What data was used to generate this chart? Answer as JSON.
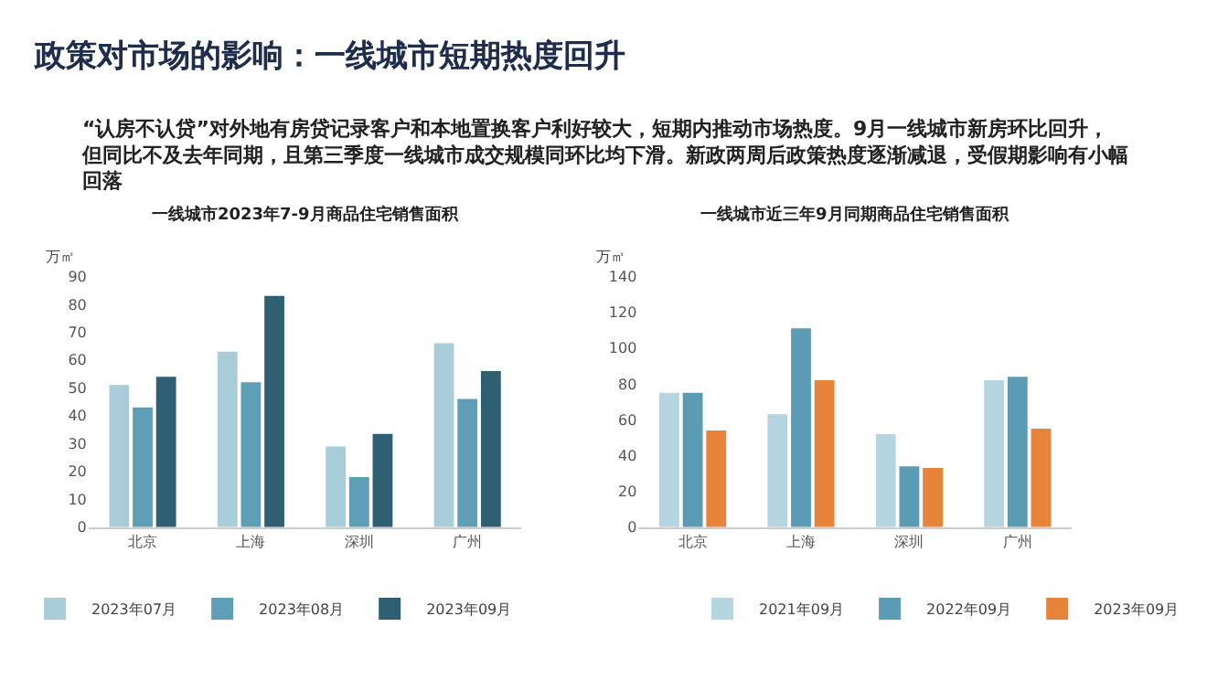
{
  "chart_data": [
    {
      "type": "bar",
      "title": "一线城市2023年7-9月商品住宅销售面积",
      "ylabel": "万㎡",
      "annotations": [
        "政策对市场的影响：一线城市短期热度回升",
        "“认房不认贷”对外地有房贷记录客户和本地置换客户利好较大，短期内推动市场热度。9月一线城市新房环比回升，但同比不及去年同期，且第三季度一线城市成交规模同环比均下滑。新政两周后政策热度逐渐减退，受假期影响有小幅回落"
      ],
      "categories": [
        "北京",
        "上海",
        "深圳",
        "广州"
      ],
      "series": [
        {
          "name": "2023年07月",
          "color": "#a9cdd8",
          "values": [
            51,
            63,
            29,
            66
          ]
        },
        {
          "name": "2023年08月",
          "color": "#5f9fb5",
          "values": [
            43,
            52,
            18,
            46
          ]
        },
        {
          "name": "2023年09月",
          "color": "#2e5f73",
          "values": [
            54,
            83,
            33.5,
            56
          ]
        }
      ],
      "ylim": [
        0,
        90
      ],
      "yticks": [
        0,
        10,
        20,
        30,
        40,
        50,
        60,
        70,
        80,
        90
      ],
      "grid": false,
      "legend": "bottom"
    },
    {
      "type": "bar",
      "title": "一线城市近三年9月同期商品住宅销售面积",
      "ylabel": "万㎡",
      "categories": [
        "北京",
        "上海",
        "深圳",
        "广州"
      ],
      "series": [
        {
          "name": "2021年09月",
          "color": "#b5d5e0",
          "values": [
            75,
            63,
            52,
            82
          ]
        },
        {
          "name": "2022年09月",
          "color": "#5b9cb4",
          "values": [
            75,
            111,
            34,
            84
          ]
        },
        {
          "name": "2023年09月",
          "color": "#e8843a",
          "values": [
            54,
            82,
            33,
            55
          ]
        }
      ],
      "ylim": [
        0,
        140
      ],
      "yticks": [
        0,
        20,
        40,
        60,
        80,
        100,
        120,
        140
      ],
      "grid": false,
      "legend": "bottom"
    }
  ]
}
